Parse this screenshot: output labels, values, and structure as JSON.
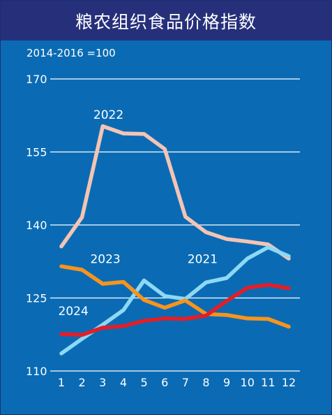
{
  "chart_data": {
    "type": "line",
    "title": "粮农组织食品价格指数",
    "subtitle": "2014-2016 =100",
    "x": [
      1,
      2,
      3,
      4,
      5,
      6,
      7,
      8,
      9,
      10,
      11,
      12
    ],
    "ylim": [
      110,
      170
    ],
    "yticks": [
      110,
      125,
      140,
      155,
      170
    ],
    "grid": true,
    "series": [
      {
        "name": "2022",
        "color": "#f4c4b4",
        "label_at": [
          2.55,
          161.8
        ],
        "values": [
          135.6,
          141.6,
          160.3,
          158.8,
          158.7,
          155.6,
          141.7,
          138.5,
          137.1,
          136.6,
          136.0,
          133.1
        ]
      },
      {
        "name": "2021",
        "color": "#8dd8f4",
        "label_at": [
          7.1,
          132.2
        ],
        "values": [
          113.6,
          116.6,
          119.5,
          122.5,
          128.6,
          125.4,
          124.8,
          128.2,
          129.1,
          133.1,
          135.4,
          133.6
        ]
      },
      {
        "name": "2023",
        "color": "#f7941d",
        "label_at": [
          2.4,
          132.2
        ],
        "values": [
          131.5,
          130.8,
          127.9,
          128.3,
          124.6,
          123.0,
          124.5,
          121.7,
          121.5,
          120.8,
          120.7,
          119.1
        ]
      },
      {
        "name": "2024",
        "color": "#e41e26",
        "label_at": [
          0.85,
          121.5
        ],
        "values": [
          117.6,
          117.4,
          118.9,
          119.2,
          120.3,
          120.8,
          120.7,
          121.4,
          124.4,
          127.1,
          127.7,
          127.0
        ]
      }
    ]
  }
}
